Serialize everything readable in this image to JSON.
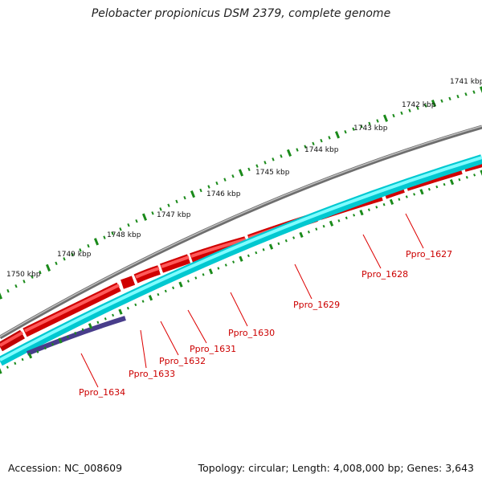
{
  "title": "Pelobacter propionicus DSM 2379, complete genome",
  "footer": {
    "accession": "Accession: NC_008609",
    "summary": "Topology: circular; Length: 4,008,000 bp; Genes: 3,643"
  },
  "scale_labels": [
    "1741 kbp",
    "1742 kbp",
    "1743 kbp",
    "1744 kbp",
    "1745 kbp",
    "1746 kbp",
    "1747 kbp",
    "1748 kbp",
    "1749 kbp",
    "1750 kbp"
  ],
  "gene_labels": [
    "Ppro_1627",
    "Ppro_1628",
    "Ppro_1629",
    "Ppro_1630",
    "Ppro_1631",
    "Ppro_1632",
    "Ppro_1633",
    "Ppro_1634"
  ],
  "colors": {
    "backbone": "#808080",
    "forward_gene": "#ff0000",
    "reverse_gene": "#00ffff",
    "highlight_gene": "#483d8b",
    "ticks": "#006400",
    "label_text": "#cc0000"
  }
}
